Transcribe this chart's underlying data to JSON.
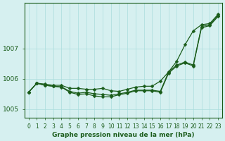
{
  "xlabel": "Graphe pression niveau de la mer (hPa)",
  "background_color": "#d6f0f0",
  "grid_color": "#aadddd",
  "line_color": "#1a5c1a",
  "ylim": [
    1004.7,
    1008.5
  ],
  "yticks": [
    1005,
    1006,
    1007
  ],
  "x_values": [
    0,
    1,
    2,
    3,
    4,
    5,
    6,
    7,
    8,
    9,
    10,
    11,
    12,
    13,
    14,
    15,
    16,
    17,
    18,
    19,
    20,
    21,
    22,
    23
  ],
  "y_upper": [
    1005.55,
    1005.85,
    1005.82,
    1005.78,
    1005.78,
    1005.68,
    1005.68,
    1005.65,
    1005.65,
    1005.68,
    1005.6,
    1005.58,
    1005.65,
    1005.72,
    1005.75,
    1005.75,
    1005.92,
    1006.22,
    1006.58,
    1007.12,
    1007.58,
    1007.78,
    1007.82,
    1008.12
  ],
  "y_mid": [
    1005.55,
    1005.85,
    1005.78,
    1005.75,
    1005.73,
    1005.58,
    1005.52,
    1005.55,
    1005.5,
    1005.48,
    1005.45,
    1005.5,
    1005.55,
    1005.62,
    1005.62,
    1005.62,
    1005.58,
    1006.22,
    1006.45,
    1006.55,
    1006.45,
    1007.72,
    1007.78,
    1008.08
  ],
  "y_lower": [
    1005.55,
    1005.85,
    1005.78,
    1005.75,
    1005.72,
    1005.55,
    1005.48,
    1005.5,
    1005.43,
    1005.4,
    1005.4,
    1005.47,
    1005.52,
    1005.6,
    1005.6,
    1005.6,
    1005.55,
    1006.18,
    1006.42,
    1006.52,
    1006.42,
    1007.68,
    1007.75,
    1008.05
  ]
}
